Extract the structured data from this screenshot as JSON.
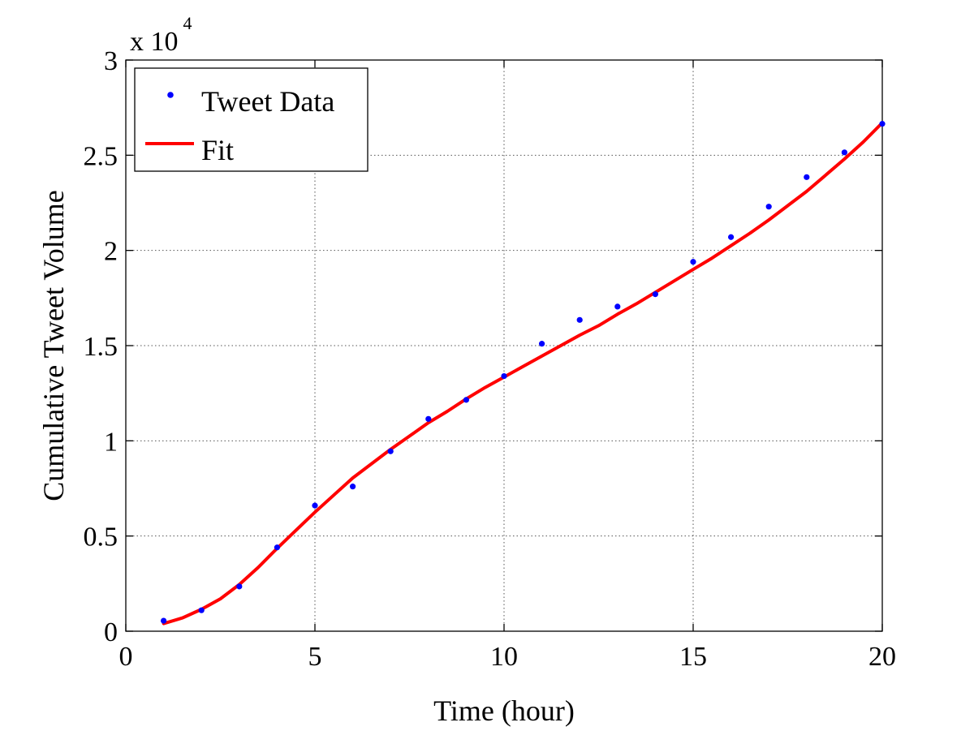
{
  "chart_data": {
    "type": "line",
    "xlabel": "Time (hour)",
    "ylabel": "Cumulative Tweet Volume",
    "xlim": [
      0,
      20
    ],
    "ylim": [
      0,
      30000
    ],
    "xticks": [
      0,
      5,
      10,
      15,
      20
    ],
    "xtick_labels": [
      "0",
      "5",
      "10",
      "15",
      "20"
    ],
    "yticks": [
      0,
      5000,
      10000,
      15000,
      20000,
      25000,
      30000
    ],
    "ytick_labels": [
      "0",
      "0.5",
      "1",
      "1.5",
      "2",
      "2.5",
      "3"
    ],
    "y_multiplier": {
      "base": "x 10",
      "exponent": "4"
    },
    "grid": true,
    "legend_position": "top-left",
    "series": [
      {
        "name": "Tweet Data",
        "style": "markers",
        "color": "#0000ff",
        "x": [
          1,
          2,
          3,
          4,
          5,
          6,
          7,
          8,
          9,
          10,
          11,
          12,
          13,
          14,
          15,
          16,
          17,
          18,
          19,
          20
        ],
        "y": [
          550,
          1100,
          2350,
          4400,
          6600,
          7600,
          9450,
          11150,
          12150,
          13400,
          15100,
          16350,
          17050,
          17700,
          19400,
          20700,
          22300,
          23850,
          25150,
          26650
        ]
      },
      {
        "name": "Fit",
        "style": "line",
        "color": "#ff0000",
        "x": [
          1,
          1.5,
          2,
          2.5,
          3,
          3.5,
          4,
          4.5,
          5,
          5.5,
          6,
          6.5,
          7,
          7.5,
          8,
          8.5,
          9,
          9.5,
          10,
          10.5,
          11,
          11.5,
          12,
          12.5,
          13,
          13.5,
          14,
          14.5,
          15,
          15.5,
          16,
          16.5,
          17,
          17.5,
          18,
          18.5,
          19,
          19.5,
          20
        ],
        "y": [
          400,
          700,
          1150,
          1700,
          2450,
          3350,
          4350,
          5300,
          6250,
          7150,
          8050,
          8800,
          9550,
          10250,
          10950,
          11550,
          12200,
          12800,
          13350,
          13900,
          14450,
          15000,
          15550,
          16050,
          16650,
          17200,
          17800,
          18400,
          19000,
          19600,
          20250,
          20900,
          21600,
          22350,
          23100,
          23950,
          24800,
          25700,
          26700
        ]
      }
    ]
  }
}
